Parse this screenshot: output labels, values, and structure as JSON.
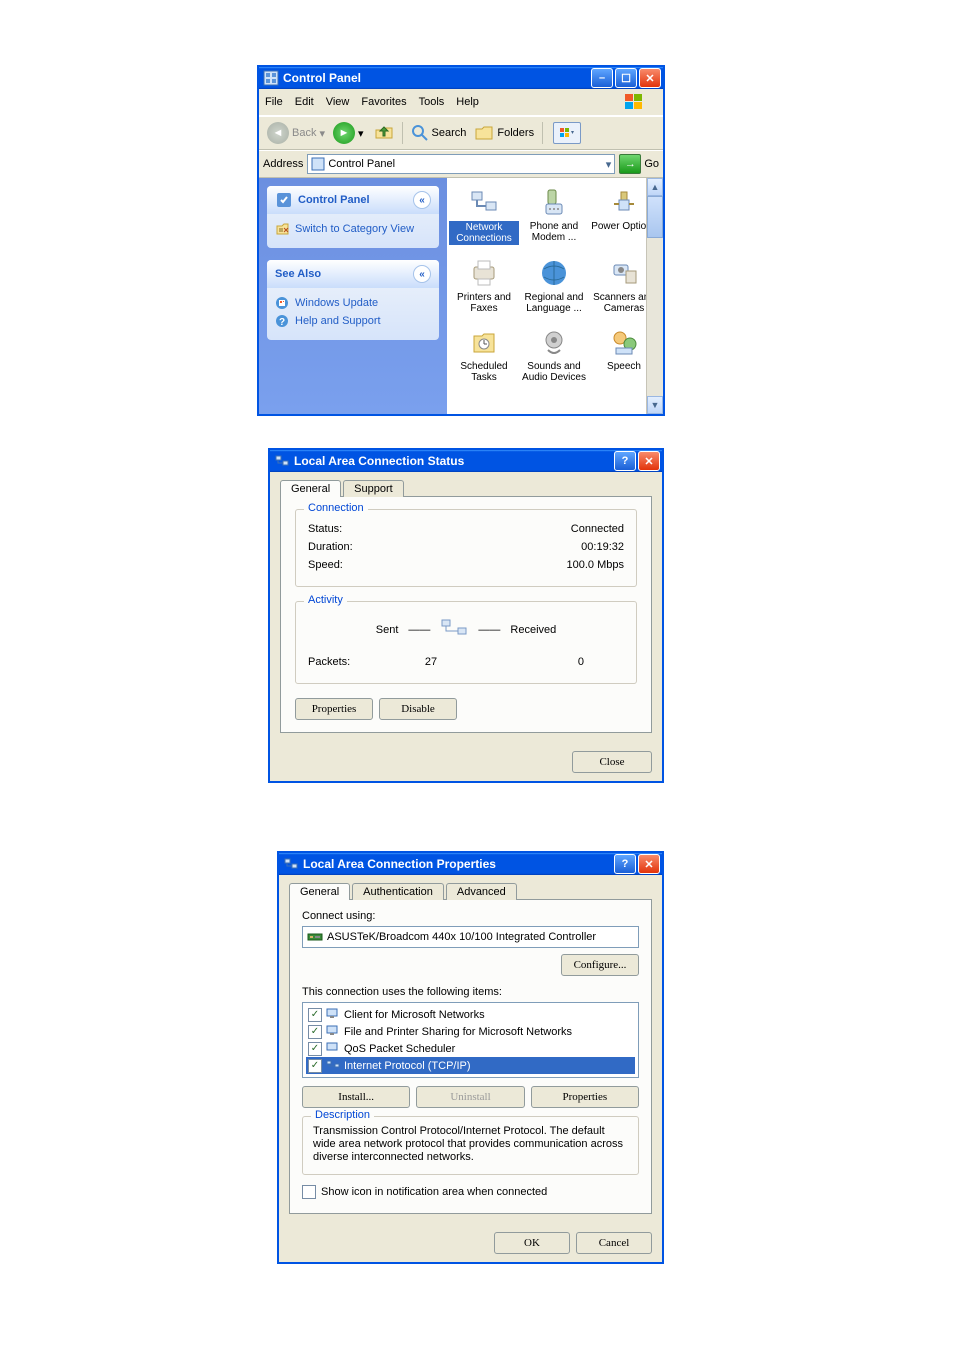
{
  "cp": {
    "title": "Control Panel",
    "menus": [
      "File",
      "Edit",
      "View",
      "Favorites",
      "Tools",
      "Help"
    ],
    "toolbar": {
      "back": "Back",
      "search": "Search",
      "folders": "Folders"
    },
    "address_label": "Address",
    "address_value": "Control Panel",
    "go": "Go",
    "side": {
      "panel1_title": "Control Panel",
      "panel1_link": "Switch to Category View",
      "panel2_title": "See Also",
      "panel2_links": [
        "Windows Update",
        "Help and Support"
      ]
    },
    "items": [
      {
        "label": "Network Connections",
        "selected": true
      },
      {
        "label": "Phone and Modem ...",
        "selected": false
      },
      {
        "label": "Power Options",
        "selected": false
      },
      {
        "label": "Printers and Faxes",
        "selected": false
      },
      {
        "label": "Regional and Language ...",
        "selected": false
      },
      {
        "label": "Scanners and Cameras",
        "selected": false
      },
      {
        "label": "Scheduled Tasks",
        "selected": false
      },
      {
        "label": "Sounds and Audio Devices",
        "selected": false
      },
      {
        "label": "Speech",
        "selected": false
      }
    ]
  },
  "status": {
    "title": "Local Area Connection Status",
    "tabs": [
      "General",
      "Support"
    ],
    "connection_legend": "Connection",
    "status_label": "Status:",
    "status_value": "Connected",
    "duration_label": "Duration:",
    "duration_value": "00:19:32",
    "speed_label": "Speed:",
    "speed_value": "100.0 Mbps",
    "activity_legend": "Activity",
    "sent": "Sent",
    "received": "Received",
    "packets_label": "Packets:",
    "packets_sent": "27",
    "packets_recv": "0",
    "btn_properties": "Properties",
    "btn_disable": "Disable",
    "btn_close": "Close"
  },
  "props": {
    "title": "Local Area Connection Properties",
    "tabs": [
      "General",
      "Authentication",
      "Advanced"
    ],
    "connect_using_label": "Connect using:",
    "adapter": "ASUSTeK/Broadcom 440x 10/100 Integrated Controller",
    "btn_configure": "Configure...",
    "uses_label": "This connection uses the following items:",
    "items": [
      {
        "checked": true,
        "label": "Client for Microsoft Networks",
        "selected": false
      },
      {
        "checked": true,
        "label": "File and Printer Sharing for Microsoft Networks",
        "selected": false
      },
      {
        "checked": true,
        "label": "QoS Packet Scheduler",
        "selected": false
      },
      {
        "checked": true,
        "label": "Internet Protocol (TCP/IP)",
        "selected": true
      }
    ],
    "btn_install": "Install...",
    "btn_uninstall": "Uninstall",
    "btn_properties": "Properties",
    "desc_legend": "Description",
    "desc_text": "Transmission Control Protocol/Internet Protocol. The default wide area network protocol that provides communication across diverse interconnected networks.",
    "show_icon_label": "Show icon in notification area when connected",
    "btn_ok": "OK",
    "btn_cancel": "Cancel"
  },
  "colors": {
    "titlebar": "#0054e3",
    "accent": "#215dc6",
    "select": "#316ac5",
    "win_bg": "#ece9d8",
    "border": "#919b9c"
  }
}
